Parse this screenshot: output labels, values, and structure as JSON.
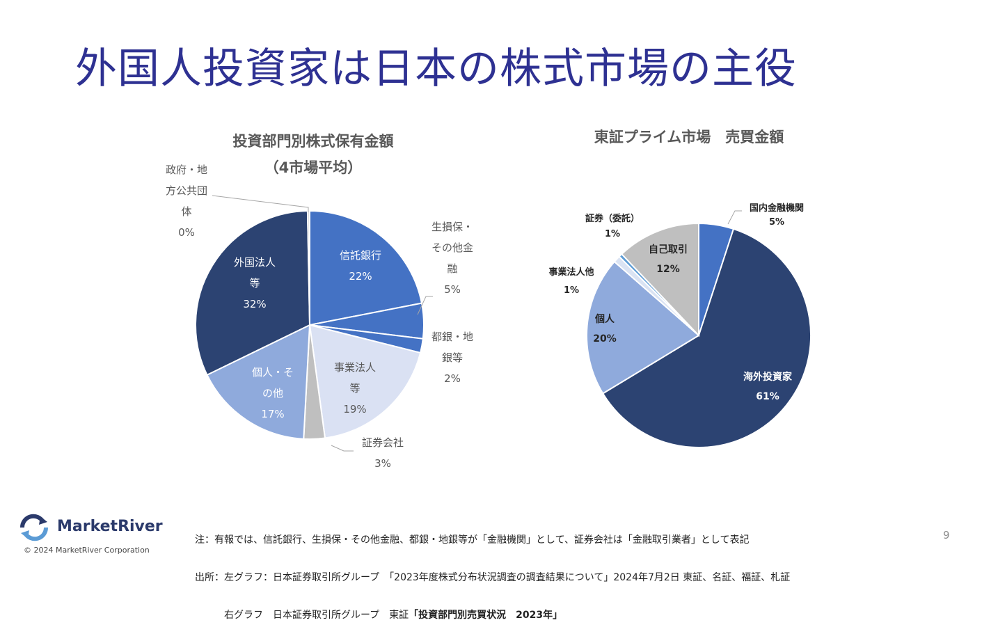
{
  "slide": {
    "title": "外国人投資家は日本の株式市場の主役",
    "page_number": "9"
  },
  "colors": {
    "title": "#2e3192",
    "dark_navy": "#2c4372",
    "mid_blue": "#4472c4",
    "light_blue": "#8faadc",
    "pale_blue": "#d9e1f2",
    "very_pale": "#e6ecf7",
    "grey": "#bfbfbf",
    "sky": "#5b9bd5"
  },
  "chart_data": [
    {
      "type": "pie",
      "title": "投資部門別株式保有金額",
      "subtitle": "（4市場平均）",
      "slices": [
        {
          "label": "信託銀行",
          "value": 22,
          "display": "22%",
          "color": "#4472c4"
        },
        {
          "label": "生損保・その他金融",
          "value": 5,
          "display": "5%",
          "color": "#4472c4"
        },
        {
          "label": "都銀・地銀等",
          "value": 2,
          "display": "2%",
          "color": "#4472c4"
        },
        {
          "label": "事業法人等",
          "value": 19,
          "display": "19%",
          "color": "#dae1f3"
        },
        {
          "label": "証券会社",
          "value": 3,
          "display": "3%",
          "color": "#bfbfbf"
        },
        {
          "label": "個人・その他",
          "value": 17,
          "display": "17%",
          "color": "#8faadc"
        },
        {
          "label": "外国法人等",
          "value": 32,
          "display": "32%",
          "color": "#2c4372"
        },
        {
          "label": "政府・地方公共団体",
          "value": 0.3,
          "display": "0%",
          "color": "#d9d9d9"
        }
      ]
    },
    {
      "type": "pie",
      "title": "東証プライム市場　売買金額",
      "slices": [
        {
          "label": "国内金融機関",
          "value": 5,
          "display": "5%",
          "color": "#4472c4"
        },
        {
          "label": "海外投資家",
          "value": 61,
          "display": "61%",
          "color": "#2c4372"
        },
        {
          "label": "個人",
          "value": 20,
          "display": "20%",
          "color": "#8faadc"
        },
        {
          "label": "事業法人他",
          "value": 1,
          "display": "1%",
          "color": "#dae3f3"
        },
        {
          "label": "証券（委託）",
          "value": 0.5,
          "display": "1%",
          "color": "#5b9bd5"
        },
        {
          "label": "自己取引",
          "value": 12,
          "display": "12%",
          "color": "#bfbfbf"
        }
      ]
    }
  ],
  "labels": {
    "left": {
      "shintaku": [
        "信託銀行",
        "22%"
      ],
      "seison": [
        "生損保・",
        "その他金",
        "融",
        "5%"
      ],
      "togin": [
        "都銀・地",
        "銀等",
        "2%"
      ],
      "jigyo": [
        "事業法人",
        "等",
        "19%"
      ],
      "shoken": [
        "証券会社",
        "3%"
      ],
      "kojin": [
        "個人・そ",
        "の他",
        "17%"
      ],
      "gaikoku": [
        "外国法人",
        "等",
        "32%"
      ],
      "seifu": [
        "政府・地",
        "方公共団",
        "体",
        "0%"
      ]
    },
    "right": {
      "kokunai": [
        "国内金融機関",
        "5%"
      ],
      "kaigai": [
        "海外投資家",
        "61%"
      ],
      "kojin": [
        "個人",
        "20%"
      ],
      "jigyo": [
        "事業法人他",
        "1%"
      ],
      "shoken": [
        "証券（委託）",
        "1%"
      ],
      "jiko": [
        "自己取引",
        "12%"
      ]
    }
  },
  "notes": {
    "line1": "注：有報では、信託銀行、生損保・その他金融、都銀・地銀等が「金融機関」として、証券会社は「金融取引業者」として表記",
    "line2": "出所：左グラフ：日本証券取引所グループ　「2023年度株式分布状況調査の調査結果について」2024年7月2日 東証、名証、福証、札証",
    "line3_prefix": "　　　右グラフ　日本証券取引所グループ　東証",
    "line3_strong": "「投資部門別売買状況　2023年」"
  },
  "logo": {
    "name": "MarketRiver",
    "copyright": "© 2024 MarketRiver Corporation"
  }
}
